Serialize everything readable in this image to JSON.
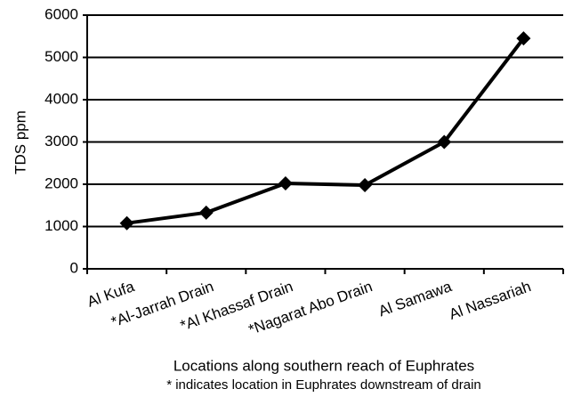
{
  "chart_data": {
    "type": "line",
    "x_label": "Locations along southern reach of Euphrates",
    "note": "* indicates location in Euphrates downstream of drain",
    "y_label": "TDS ppm",
    "categories": [
      "Al Kufa",
      "*Al-Jarrah Drain",
      "*Al Khassaf Drain",
      "*Nagarat Abo Drain",
      "Al Samawa",
      "Al Nassariah"
    ],
    "values": [
      1080,
      1330,
      2020,
      1980,
      3000,
      5450
    ],
    "color": "#000000",
    "ylim": [
      0,
      6000
    ],
    "yticks": [
      0,
      1000,
      2000,
      3000,
      4000,
      5000,
      6000
    ],
    "grid": true
  }
}
